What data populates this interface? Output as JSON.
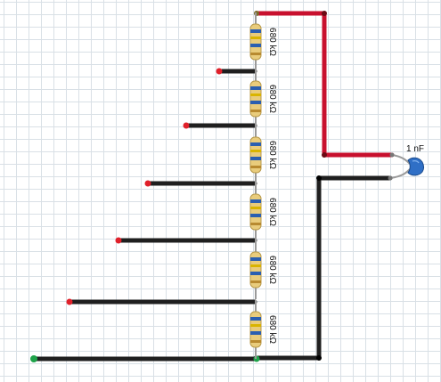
{
  "resistors": [
    {
      "value": "680 kΩ"
    },
    {
      "value": "680 kΩ"
    },
    {
      "value": "680 kΩ"
    },
    {
      "value": "680 kΩ"
    },
    {
      "value": "680 kΩ"
    },
    {
      "value": "680 kΩ"
    }
  ],
  "capacitor": {
    "value": "1 nF"
  },
  "colors": {
    "wire_positive": "#c8102e",
    "wire_negative": "#1f1f1f",
    "end_red": "#e0202a",
    "end_green": "#1fa34a",
    "resistor_body": "#e9cc7c",
    "capacitor_body": "#2f6fc6",
    "grid": "#d9e0e6"
  }
}
